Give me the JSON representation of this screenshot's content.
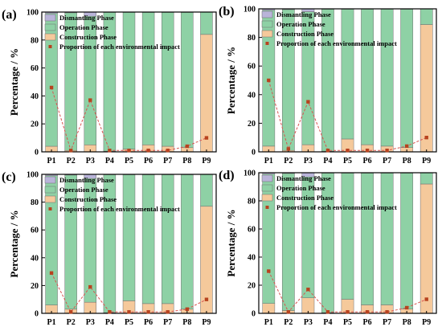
{
  "colors": {
    "dismantling": "#b9b4d9",
    "operation": "#8ed1a5",
    "construction": "#f5c99b",
    "proportion_line": "#d9534f",
    "proportion_marker": "#b8431f",
    "frame": "#000000"
  },
  "chart_data": [
    {
      "type": "bar",
      "stacked": true,
      "panel_label": "(a)",
      "categories": [
        "P1",
        "P2",
        "P3",
        "P4",
        "P5",
        "P6",
        "P7",
        "P8",
        "P9"
      ],
      "ylabel": "Percentage / %",
      "ylim": [
        0,
        100
      ],
      "yticks": [
        0,
        20,
        40,
        60,
        80,
        100
      ],
      "legend_position": "top-left",
      "series": [
        {
          "name": "Construction Phase",
          "values": [
            4,
            1,
            5,
            0.5,
            2,
            5,
            4,
            3,
            84
          ]
        },
        {
          "name": "Operation Phase",
          "values": [
            95,
            98.5,
            92,
            99.3,
            97.8,
            94.8,
            95.8,
            96.8,
            15.9
          ]
        },
        {
          "name": "Dismantling Phase",
          "values": [
            1,
            0.5,
            3,
            0.2,
            0.2,
            0.2,
            0.2,
            0.2,
            0.1
          ]
        }
      ],
      "proportion": {
        "name": "Proportion of each environmental impact",
        "values": [
          46,
          1,
          37,
          1,
          1,
          1,
          1,
          4,
          10
        ]
      }
    },
    {
      "type": "bar",
      "stacked": true,
      "panel_label": "(b)",
      "categories": [
        "P1",
        "P2",
        "P3",
        "P4",
        "P5",
        "P6",
        "P7",
        "P8",
        "P9"
      ],
      "ylabel": "Percentage / %",
      "ylim": [
        0,
        100
      ],
      "yticks": [
        0,
        20,
        40,
        60,
        80,
        100
      ],
      "legend_position": "top-left",
      "series": [
        {
          "name": "Construction Phase",
          "values": [
            4,
            1,
            5,
            0.5,
            9,
            5,
            4,
            3,
            89
          ]
        },
        {
          "name": "Operation Phase",
          "values": [
            95,
            98.5,
            93,
            99.3,
            90.8,
            94.8,
            95.8,
            96.8,
            10.9
          ]
        },
        {
          "name": "Dismantling Phase",
          "values": [
            1,
            0.5,
            2,
            0.2,
            0.2,
            0.2,
            0.2,
            0.2,
            0.1
          ]
        }
      ],
      "proportion": {
        "name": "Proportion of each environmental impact",
        "values": [
          50,
          2,
          35,
          1,
          1,
          1,
          1,
          4,
          10
        ]
      }
    },
    {
      "type": "bar",
      "stacked": true,
      "panel_label": "(c)",
      "categories": [
        "P1",
        "P2",
        "P3",
        "P4",
        "P5",
        "P6",
        "P7",
        "P8",
        "P9"
      ],
      "ylabel": "Percentage / %",
      "ylim": [
        0,
        100
      ],
      "yticks": [
        0,
        20,
        40,
        60,
        80,
        100
      ],
      "legend_position": "top-left",
      "series": [
        {
          "name": "Construction Phase",
          "values": [
            6,
            3,
            8,
            0.5,
            9,
            7,
            7,
            3,
            77
          ]
        },
        {
          "name": "Operation Phase",
          "values": [
            93,
            96.5,
            89,
            99.3,
            90.8,
            92.8,
            92.8,
            96.8,
            22.9
          ]
        },
        {
          "name": "Dismantling Phase",
          "values": [
            1,
            0.5,
            3,
            0.2,
            0.2,
            0.2,
            0.2,
            0.2,
            0.1
          ]
        }
      ],
      "proportion": {
        "name": "Proportion of each environmental impact",
        "values": [
          29,
          1,
          19,
          1,
          1,
          1,
          1,
          3,
          10
        ]
      }
    },
    {
      "type": "bar",
      "stacked": true,
      "panel_label": "(d)",
      "categories": [
        "P1",
        "P2",
        "P3",
        "P4",
        "P5",
        "P6",
        "P7",
        "P8",
        "P9"
      ],
      "ylabel": "Percentage / %",
      "ylim": [
        0,
        100
      ],
      "yticks": [
        0,
        20,
        40,
        60,
        80,
        100
      ],
      "legend_position": "top-left",
      "series": [
        {
          "name": "Construction Phase",
          "values": [
            7,
            2,
            11,
            0.5,
            10,
            6,
            6,
            3,
            92
          ]
        },
        {
          "name": "Operation Phase",
          "values": [
            92,
            97.5,
            86,
            99.3,
            89.8,
            93.8,
            93.8,
            96.8,
            7.9
          ]
        },
        {
          "name": "Dismantling Phase",
          "values": [
            1,
            0.5,
            3,
            0.2,
            0.2,
            0.2,
            0.2,
            0.2,
            0.1
          ]
        }
      ],
      "proportion": {
        "name": "Proportion of each environmental impact",
        "values": [
          30,
          1,
          17,
          1,
          1,
          1,
          1,
          4,
          10
        ]
      }
    }
  ]
}
